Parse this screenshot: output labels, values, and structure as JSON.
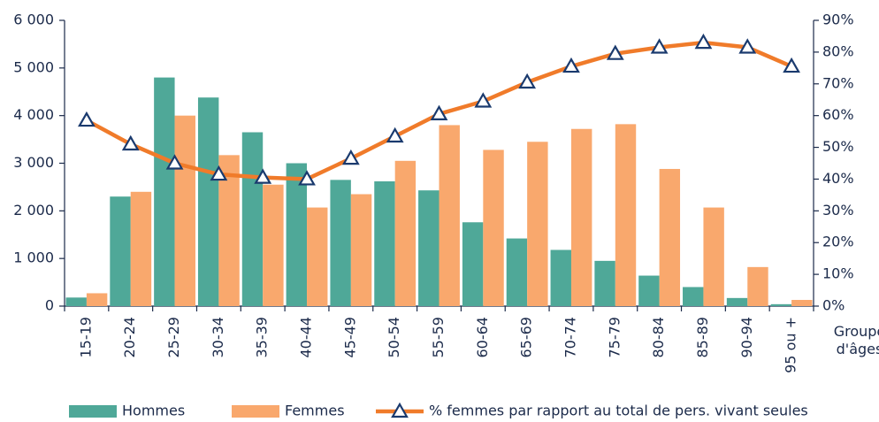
{
  "chart_data": {
    "type": "bar-line",
    "x_label": "Groupe d'âges",
    "categories": [
      "15-19",
      "20-24",
      "25-29",
      "30-34",
      "35-39",
      "40-44",
      "45-49",
      "50-54",
      "55-59",
      "60-64",
      "65-69",
      "70-74",
      "75-79",
      "80-84",
      "85-89",
      "90-94",
      "95 ou +"
    ],
    "series": [
      {
        "name": "Hommes",
        "type": "bar",
        "color": "#4fa898",
        "values": [
          180,
          2300,
          4800,
          4380,
          3650,
          3000,
          2650,
          2620,
          2430,
          1760,
          1420,
          1180,
          950,
          640,
          400,
          170,
          40
        ]
      },
      {
        "name": "Femmes",
        "type": "bar",
        "color": "#f9a86d",
        "values": [
          270,
          2400,
          4000,
          3170,
          2550,
          2070,
          2350,
          3050,
          3800,
          3280,
          3450,
          3720,
          3820,
          2880,
          2070,
          820,
          130
        ]
      },
      {
        "name": "% femmes par rapport au total de pers. vivant seules",
        "type": "line",
        "axis": "y2",
        "color": "#f07b2a",
        "marker_color": "#1a3a6e",
        "values": [
          58.5,
          51,
          45,
          41.5,
          40.5,
          40,
          46.5,
          53.5,
          60.5,
          64.5,
          70.5,
          75.5,
          79.5,
          81.5,
          83,
          81.5,
          75.5
        ]
      }
    ],
    "ylim": [
      0,
      6000
    ],
    "yticks": [
      0,
      {
        "value": 1000,
        "label": "1 000"
      },
      {
        "value": 2000,
        "label": "2 000"
      },
      {
        "value": 3000,
        "label": "3 000"
      },
      {
        "value": 4000,
        "label": "4 000"
      },
      {
        "value": 5000,
        "label": "5 000"
      },
      {
        "value": 6000,
        "label": "6 000"
      }
    ],
    "y2lim": [
      0,
      90
    ],
    "y2ticks": [
      {
        "value": 0,
        "label": "0%"
      },
      {
        "value": 10,
        "label": "10%"
      },
      {
        "value": 20,
        "label": "20%"
      },
      {
        "value": 30,
        "label": "30%"
      },
      {
        "value": 40,
        "label": "40%"
      },
      {
        "value": 50,
        "label": "50%"
      },
      {
        "value": 60,
        "label": "60%"
      },
      {
        "value": 70,
        "label": "70%"
      },
      {
        "value": 80,
        "label": "80%"
      },
      {
        "value": 90,
        "label": "90%"
      }
    ],
    "legend": "bottom"
  }
}
